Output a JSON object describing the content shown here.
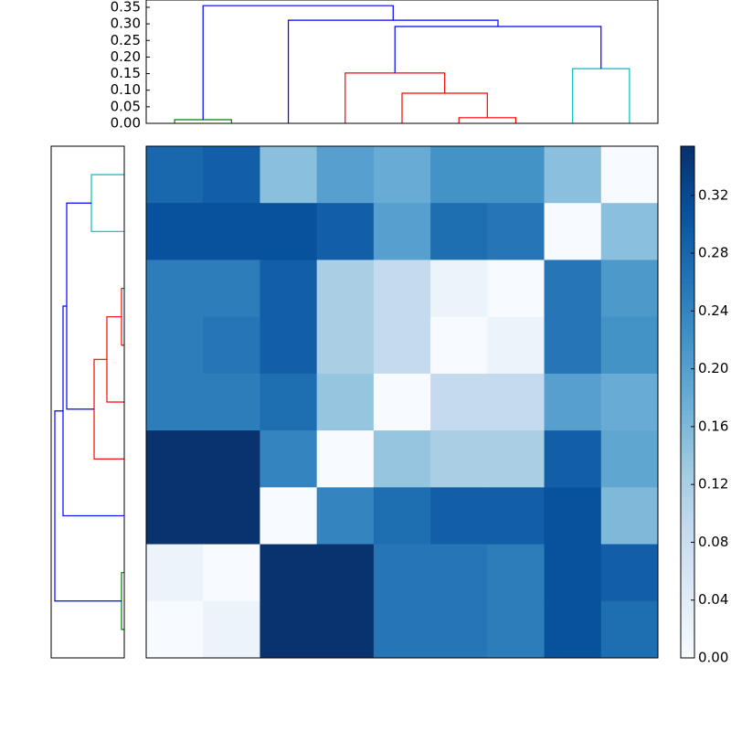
{
  "chart_data": [
    {
      "type": "dendrogram",
      "orientation": "top",
      "xlim": [
        0,
        90
      ],
      "ylim": [
        0,
        0.372
      ],
      "yticks": [
        {
          "value": 0,
          "label": "0.00"
        },
        {
          "value": 0.05,
          "label": "0.05"
        },
        {
          "value": 0.1,
          "label": "0.10"
        },
        {
          "value": 0.15,
          "label": "0.15"
        },
        {
          "value": 0.2,
          "label": "0.20"
        },
        {
          "value": 0.25,
          "label": "0.25"
        },
        {
          "value": 0.3,
          "label": "0.30"
        },
        {
          "value": 0.35,
          "label": "0.35"
        }
      ],
      "links": [
        {
          "color": "#008000",
          "icoord": [
            5,
            5,
            15,
            15
          ],
          "dcoord": [
            0,
            0.011,
            0.011,
            0
          ]
        },
        {
          "color": "#ff0000",
          "icoord": [
            55,
            55,
            65,
            65
          ],
          "dcoord": [
            0,
            0.017,
            0.017,
            0
          ]
        },
        {
          "color": "#ff0000",
          "icoord": [
            45,
            45,
            60,
            60
          ],
          "dcoord": [
            0,
            0.091,
            0.091,
            0.017
          ]
        },
        {
          "color": "#ff0000",
          "icoord": [
            35,
            35,
            52.5,
            52.5
          ],
          "dcoord": [
            0,
            0.152,
            0.152,
            0.091
          ]
        },
        {
          "color": "#00bfbf",
          "icoord": [
            75,
            75,
            85,
            85
          ],
          "dcoord": [
            0,
            0.165,
            0.165,
            0
          ]
        },
        {
          "color": "#0000ff",
          "icoord": [
            43.75,
            43.75,
            80,
            80
          ],
          "dcoord": [
            0.152,
            0.292,
            0.292,
            0.165
          ]
        },
        {
          "color": "#0000ff",
          "icoord": [
            25,
            25,
            61.875,
            61.875
          ],
          "dcoord": [
            0,
            0.311,
            0.311,
            0.292
          ]
        },
        {
          "color": "#0000ff",
          "icoord": [
            10,
            10,
            43.4375,
            43.4375
          ],
          "dcoord": [
            0.011,
            0.355,
            0.355,
            0.311
          ]
        }
      ]
    },
    {
      "type": "dendrogram",
      "orientation": "left",
      "ylim": [
        0,
        90
      ],
      "xlim": [
        0.4,
        0
      ],
      "links": [
        {
          "color": "#00bfbf",
          "icoord": [
            5,
            5,
            15,
            15
          ],
          "dcoord": [
            0,
            0.18,
            0.18,
            0
          ]
        },
        {
          "color": "#ff0000",
          "icoord": [
            25,
            25,
            35,
            35
          ],
          "dcoord": [
            0,
            0.015,
            0.015,
            0
          ]
        },
        {
          "color": "#ff0000",
          "icoord": [
            30,
            30,
            45,
            45
          ],
          "dcoord": [
            0.015,
            0.095,
            0.095,
            0
          ]
        },
        {
          "color": "#ff0000",
          "icoord": [
            37.5,
            37.5,
            55,
            55
          ],
          "dcoord": [
            0.095,
            0.165,
            0.165,
            0
          ]
        },
        {
          "color": "#0000ff",
          "icoord": [
            10,
            10,
            46.25,
            46.25
          ],
          "dcoord": [
            0.18,
            0.315,
            0.315,
            0.165
          ]
        },
        {
          "color": "#0000ff",
          "icoord": [
            28.125,
            28.125,
            65,
            65
          ],
          "dcoord": [
            0.315,
            0.335,
            0.335,
            0
          ]
        },
        {
          "color": "#008000",
          "icoord": [
            75,
            75,
            85,
            85
          ],
          "dcoord": [
            0,
            0.015,
            0.015,
            0
          ]
        },
        {
          "color": "#0000ff",
          "icoord": [
            46.5625,
            46.5625,
            80,
            80
          ],
          "dcoord": [
            0.335,
            0.38,
            0.38,
            0.015
          ]
        }
      ]
    },
    {
      "type": "heatmap",
      "colormap": "Blues",
      "clim": [
        0,
        0.354
      ],
      "colorbar_ticks": [
        {
          "value": 0,
          "label": "0.00"
        },
        {
          "value": 0.04,
          "label": "0.04"
        },
        {
          "value": 0.08,
          "label": "0.08"
        },
        {
          "value": 0.12,
          "label": "0.12"
        },
        {
          "value": 0.16,
          "label": "0.16"
        },
        {
          "value": 0.2,
          "label": "0.20"
        },
        {
          "value": 0.24,
          "label": "0.24"
        },
        {
          "value": 0.28,
          "label": "0.28"
        },
        {
          "value": 0.32,
          "label": "0.32"
        }
      ],
      "values": [
        [
          0.28,
          0.29,
          0.15,
          0.2,
          0.18,
          0.22,
          0.22,
          0.15,
          0.0
        ],
        [
          0.31,
          0.31,
          0.31,
          0.29,
          0.2,
          0.27,
          0.26,
          0.0,
          0.15
        ],
        [
          0.25,
          0.25,
          0.29,
          0.12,
          0.09,
          0.02,
          0.0,
          0.26,
          0.21
        ],
        [
          0.25,
          0.26,
          0.29,
          0.12,
          0.09,
          0.0,
          0.02,
          0.26,
          0.22
        ],
        [
          0.25,
          0.25,
          0.27,
          0.14,
          0.0,
          0.09,
          0.09,
          0.2,
          0.18
        ],
        [
          0.35,
          0.35,
          0.24,
          0.0,
          0.14,
          0.12,
          0.12,
          0.29,
          0.19
        ],
        [
          0.35,
          0.35,
          0.0,
          0.24,
          0.27,
          0.29,
          0.29,
          0.31,
          0.16
        ],
        [
          0.02,
          0.0,
          0.35,
          0.35,
          0.26,
          0.26,
          0.25,
          0.31,
          0.29
        ],
        [
          0.0,
          0.02,
          0.35,
          0.35,
          0.26,
          0.26,
          0.25,
          0.31,
          0.27
        ]
      ]
    }
  ]
}
